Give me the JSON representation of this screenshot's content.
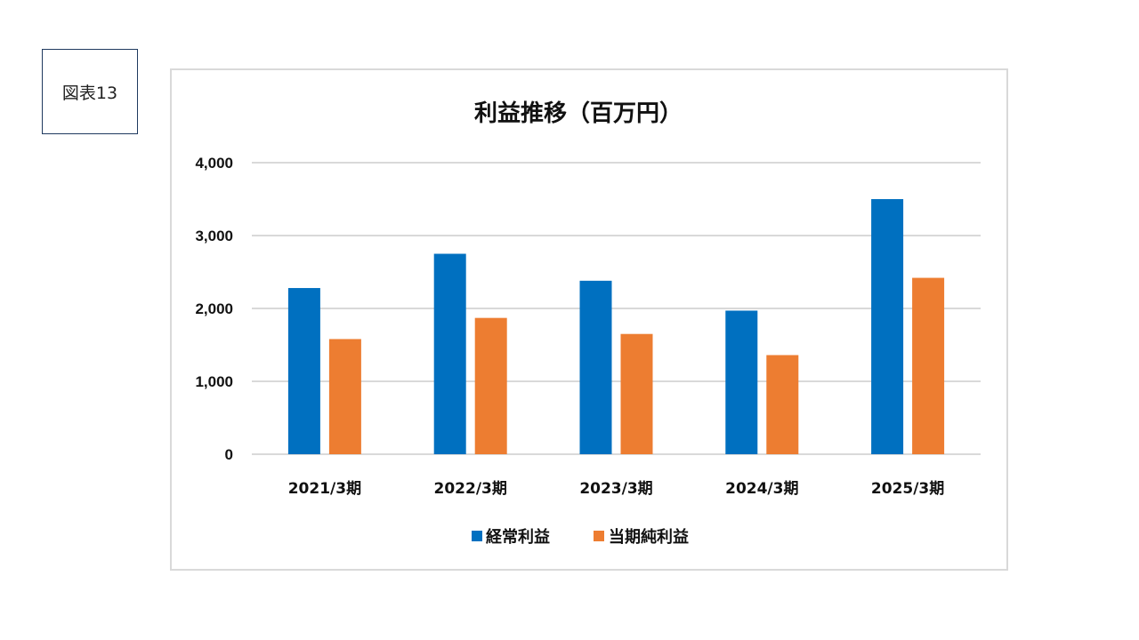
{
  "figure_label": "図表13",
  "colors": {
    "series_1": "#0070c0",
    "series_2": "#ed7d31",
    "gridline": "#d9d9d9",
    "frame_border": "#d9d9d9",
    "label_border": "#1f3a5f"
  },
  "chart_data": {
    "type": "bar",
    "title": "利益推移（百万円）",
    "categories": [
      "2021/3期",
      "2022/3期",
      "2023/3期",
      "2024/3期",
      "2025/3期"
    ],
    "series": [
      {
        "name": "経常利益",
        "values": [
          2280,
          2750,
          2380,
          1970,
          3500
        ]
      },
      {
        "name": "当期純利益",
        "values": [
          1580,
          1870,
          1650,
          1360,
          2420
        ]
      }
    ],
    "ylim": [
      0,
      4000
    ],
    "yticks": [
      0,
      1000,
      2000,
      3000,
      4000
    ],
    "ytick_labels": [
      "0",
      "1,000",
      "2,000",
      "3,000",
      "4,000"
    ],
    "grid": true,
    "legend_position": "bottom"
  }
}
